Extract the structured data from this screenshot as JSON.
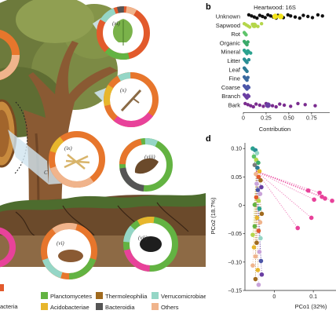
{
  "figure": {
    "panel_b_letter": "b",
    "panel_d_letter": "d",
    "colors": {
      "Unknown": "#111111",
      "Sapwood": "#b4d64a",
      "Rot": "#5ec46b",
      "Organic": "#3aaa6a",
      "Mineral": "#2aa28f",
      "Litter": "#2b8f95",
      "Leaf": "#2d7a95",
      "Fine": "#3b6aa0",
      "Coarse": "#4c56a8",
      "Branch": "#6a3ea3",
      "Bark": "#7a2c8f",
      "highlight": "#f2e31b"
    }
  },
  "illustration": {
    "roman_labels": [
      "(xi)",
      "(x)",
      "(ix)",
      "(viii)",
      "(vii)",
      "(vi)"
    ],
    "partial_left_label": "C"
  },
  "legend": {
    "items": [
      {
        "label": "acteria",
        "color": "#e25a2c"
      },
      {
        "label": "Planctomycetes",
        "color": "#63b342"
      },
      {
        "label": "Thermoleophilia",
        "color": "#a06a1e"
      },
      {
        "label": "Verrucomicrobiae",
        "color": "#95d6c6"
      },
      {
        "label": "Acidobacteriae",
        "color": "#e7b62c"
      },
      {
        "label": "Bacteroidia",
        "color": "#555555"
      },
      {
        "label": "Others",
        "color": "#f0b48c"
      }
    ]
  },
  "chart_data": [
    {
      "type": "scatter",
      "title": "Heartwood: 16S",
      "xlabel": "Contribution",
      "ylabel": "",
      "xlim": [
        0,
        0.95
      ],
      "xticks": [
        "0",
        "0.25",
        "0.50",
        "0.75"
      ],
      "xtick_values": [
        0,
        0.25,
        0.5,
        0.75
      ],
      "categories": [
        "Unknown",
        "Sapwood",
        "Rot",
        "Organic",
        "Mineral",
        "Litter",
        "Leaf",
        "Fine",
        "Coarse",
        "Branch",
        "Bark"
      ],
      "points": {
        "Unknown": [
          0.06,
          0.09,
          0.12,
          0.15,
          0.18,
          0.21,
          0.24,
          0.27,
          0.3,
          0.33,
          0.36,
          0.38,
          0.4,
          0.44,
          0.49,
          0.52,
          0.57,
          0.62,
          0.66,
          0.71,
          0.76,
          0.82,
          0.87
        ],
        "Sapwood": [
          0.01,
          0.03,
          0.05,
          0.07,
          0.1,
          0.13,
          0.16,
          0.2
        ],
        "Rot": [
          0.01,
          0.02,
          0.03
        ],
        "Organic": [
          0.01,
          0.02,
          0.03,
          0.04,
          0.05
        ],
        "Mineral": [
          0.01,
          0.02,
          0.03,
          0.04,
          0.05,
          0.06,
          0.08
        ],
        "Litter": [
          0.01,
          0.02,
          0.03,
          0.04,
          0.06
        ],
        "Leaf": [
          0.01,
          0.02,
          0.03,
          0.04
        ],
        "Fine": [
          0.01,
          0.02,
          0.03,
          0.04,
          0.05
        ],
        "Coarse": [
          0.01,
          0.02,
          0.03,
          0.04,
          0.05,
          0.06
        ],
        "Branch": [
          0.01,
          0.02,
          0.03,
          0.04,
          0.05,
          0.06
        ],
        "Bark": [
          0.02,
          0.05,
          0.08,
          0.11,
          0.14,
          0.18,
          0.22,
          0.25,
          0.28,
          0.32,
          0.36,
          0.4,
          0.45,
          0.52,
          0.6,
          0.68,
          0.79
        ]
      },
      "highlighted": [
        {
          "category": "Unknown",
          "x": 0.35
        },
        {
          "category": "Unknown",
          "x": 0.41
        },
        {
          "category": "Sapwood",
          "x": 0.12
        },
        {
          "category": "Bark",
          "x": 0.27
        }
      ]
    },
    {
      "type": "scatter",
      "title": "",
      "xlabel": "PCo1 (32%)",
      "ylabel": "PCo2 (18.7%)",
      "xlim": [
        -0.075,
        0.17
      ],
      "ylim": [
        -0.15,
        0.11
      ],
      "xticks": [
        "0",
        "0.1"
      ],
      "xtick_values": [
        0,
        0.1
      ],
      "yticks": [
        "0.10",
        "0.05",
        "0",
        "−0.05",
        "−0.10",
        "−0.15"
      ],
      "ytick_values": [
        0.1,
        0.05,
        0,
        -0.05,
        -0.1,
        -0.15
      ],
      "points": [
        {
          "x": -0.055,
          "y": 0.1,
          "color": "#2aa28f"
        },
        {
          "x": -0.048,
          "y": 0.097,
          "color": "#2b8f95"
        },
        {
          "x": -0.044,
          "y": 0.092,
          "color": "#95d6c6"
        },
        {
          "x": -0.052,
          "y": 0.086,
          "color": "#5ec46b"
        },
        {
          "x": -0.046,
          "y": 0.08,
          "color": "#b4d64a"
        },
        {
          "x": -0.041,
          "y": 0.075,
          "color": "#3aaa6a"
        },
        {
          "x": -0.05,
          "y": 0.071,
          "color": "#7a7a7a"
        },
        {
          "x": -0.043,
          "y": 0.066,
          "color": "#2d7a95"
        },
        {
          "x": -0.038,
          "y": 0.06,
          "color": "#e7b62c"
        },
        {
          "x": -0.047,
          "y": 0.055,
          "color": "#f0b48c"
        },
        {
          "x": -0.04,
          "y": 0.05,
          "color": "#e25a2c"
        },
        {
          "x": -0.035,
          "y": 0.044,
          "color": "#a06a1e"
        },
        {
          "x": -0.045,
          "y": 0.038,
          "color": "#c9a3d9"
        },
        {
          "x": -0.033,
          "y": 0.032,
          "color": "#6a3ea3"
        },
        {
          "x": -0.042,
          "y": 0.027,
          "color": "#4c56a8"
        },
        {
          "x": -0.036,
          "y": 0.02,
          "color": "#c9a3d9"
        },
        {
          "x": -0.046,
          "y": 0.014,
          "color": "#e25a2c"
        },
        {
          "x": -0.04,
          "y": 0.008,
          "color": "#b4d64a"
        },
        {
          "x": -0.05,
          "y": 0.001,
          "color": "#63b342"
        },
        {
          "x": -0.038,
          "y": -0.006,
          "color": "#2aa28f"
        },
        {
          "x": -0.032,
          "y": -0.015,
          "color": "#a06a1e"
        },
        {
          "x": -0.044,
          "y": -0.022,
          "color": "#e7b62c"
        },
        {
          "x": -0.036,
          "y": -0.03,
          "color": "#f0b48c"
        },
        {
          "x": -0.05,
          "y": -0.037,
          "color": "#63b342"
        },
        {
          "x": -0.04,
          "y": -0.045,
          "color": "#e25a2c"
        },
        {
          "x": -0.055,
          "y": -0.052,
          "color": "#b4d64a"
        },
        {
          "x": -0.035,
          "y": -0.058,
          "color": "#95d6c6"
        },
        {
          "x": -0.045,
          "y": -0.066,
          "color": "#a06a1e"
        },
        {
          "x": -0.052,
          "y": -0.074,
          "color": "#e7b62c"
        },
        {
          "x": -0.038,
          "y": -0.082,
          "color": "#c9a3d9"
        },
        {
          "x": -0.048,
          "y": -0.09,
          "color": "#f0b48c"
        },
        {
          "x": -0.034,
          "y": -0.098,
          "color": "#4c56a8"
        },
        {
          "x": -0.055,
          "y": -0.106,
          "color": "#f0b48c"
        },
        {
          "x": -0.042,
          "y": -0.114,
          "color": "#e7b62c"
        },
        {
          "x": -0.032,
          "y": -0.122,
          "color": "#6a3ea3"
        },
        {
          "x": -0.048,
          "y": -0.13,
          "color": "#a06a1e"
        },
        {
          "x": -0.04,
          "y": -0.14,
          "color": "#c9a3d9"
        },
        {
          "x": 0.087,
          "y": 0.026,
          "color": "#e8429a"
        },
        {
          "x": 0.116,
          "y": 0.022,
          "color": "#e8429a"
        },
        {
          "x": 0.122,
          "y": 0.015,
          "color": "#e8429a"
        },
        {
          "x": 0.102,
          "y": 0.01,
          "color": "#e8429a"
        },
        {
          "x": 0.13,
          "y": 0.012,
          "color": "#e8429a"
        },
        {
          "x": 0.148,
          "y": 0.008,
          "color": "#e8429a"
        },
        {
          "x": 0.095,
          "y": -0.022,
          "color": "#e8429a"
        },
        {
          "x": 0.06,
          "y": -0.04,
          "color": "#e8429a"
        }
      ],
      "connect_to_centroid": {
        "x": -0.046,
        "y": 0.06
      }
    }
  ]
}
